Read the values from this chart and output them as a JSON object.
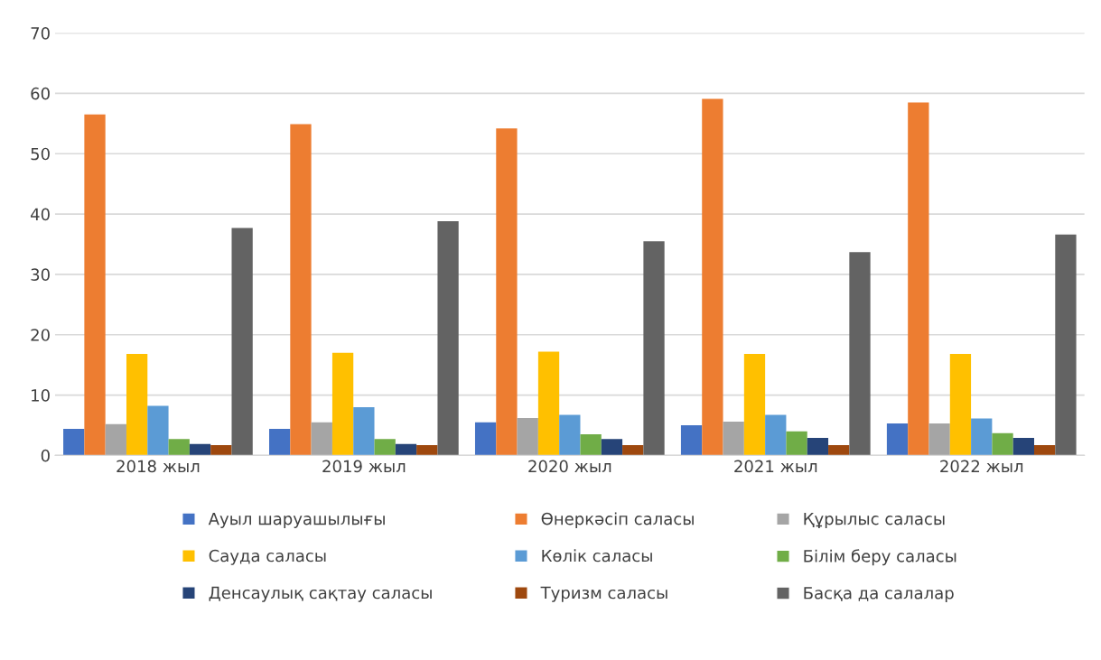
{
  "chart_data": {
    "type": "bar",
    "categories": [
      "2018 жыл",
      "2019 жыл",
      "2020 жыл",
      "2021 жыл",
      "2022 жыл"
    ],
    "series": [
      {
        "name": "Ауыл шаруашылығы",
        "color": "#4472c4",
        "values": [
          4.4,
          4.4,
          5.5,
          5.0,
          5.3
        ]
      },
      {
        "name": "Өнеркәсіп саласы",
        "color": "#ed7d31",
        "values": [
          56.5,
          54.9,
          54.2,
          59.1,
          58.5
        ]
      },
      {
        "name": "Құрылыс саласы",
        "color": "#a5a5a5",
        "values": [
          5.2,
          5.5,
          6.2,
          5.6,
          5.3
        ]
      },
      {
        "name": "Сауда саласы",
        "color": "#ffc000",
        "values": [
          16.8,
          17.0,
          17.2,
          16.8,
          16.8
        ]
      },
      {
        "name": "Көлік саласы",
        "color": "#5b9bd5",
        "values": [
          8.2,
          8.0,
          6.7,
          6.7,
          6.1
        ]
      },
      {
        "name": "Білім беру саласы",
        "color": "#70ad47",
        "values": [
          2.7,
          2.7,
          3.5,
          4.0,
          3.7
        ]
      },
      {
        "name": "Денсаулық сақтау саласы",
        "color": "#264478",
        "values": [
          1.9,
          1.9,
          2.7,
          2.9,
          2.9
        ]
      },
      {
        "name": "Туризм саласы",
        "color": "#9e480e",
        "values": [
          1.7,
          1.7,
          1.7,
          1.7,
          1.7
        ]
      },
      {
        "name": "Басқа да салалар",
        "color": "#636363",
        "values": [
          37.7,
          38.8,
          35.5,
          33.7,
          36.6
        ]
      }
    ],
    "ylim": [
      0,
      70
    ],
    "yticks": [
      0,
      10,
      20,
      30,
      40,
      50,
      60,
      70
    ],
    "grid": "y",
    "legend": "bottom"
  }
}
